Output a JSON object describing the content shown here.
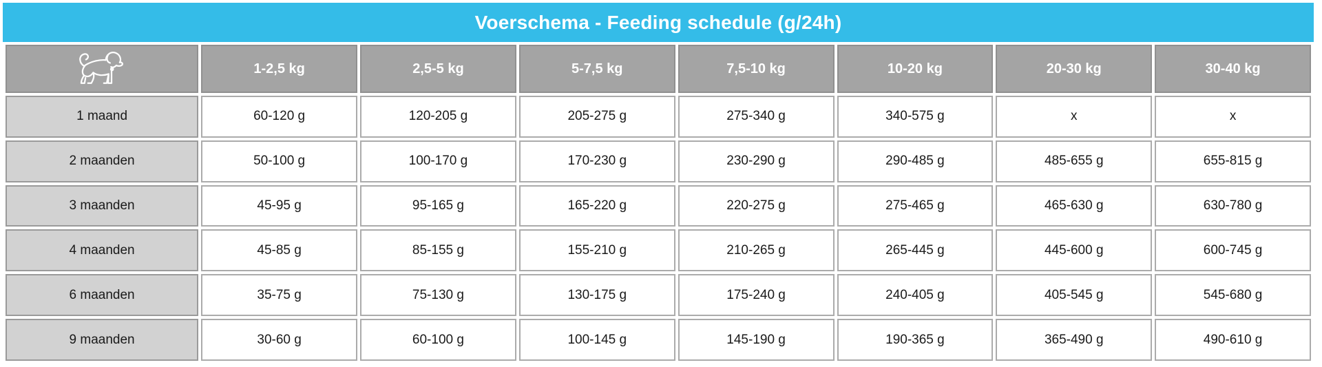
{
  "title": "Voerschema - Feeding schedule (g/24h)",
  "colors": {
    "title_bar_blue": "#34bce8",
    "header_gray": "#a4a4a4",
    "label_gray": "#d2d2d2",
    "cell_border": "#ababab",
    "text_dark": "#1a1a1a",
    "header_text": "#ffffff"
  },
  "table": {
    "corner_icon": "dog-icon",
    "columns": [
      "1-2,5 kg",
      "2,5-5 kg",
      "5-7,5 kg",
      "7,5-10 kg",
      "10-20 kg",
      "20-30 kg",
      "30-40 kg"
    ],
    "rows": [
      {
        "label": "1 maand",
        "values": [
          "60-120 g",
          "120-205 g",
          "205-275 g",
          "275-340 g",
          "340-575 g",
          "x",
          "x"
        ]
      },
      {
        "label": "2 maanden",
        "values": [
          "50-100 g",
          "100-170 g",
          "170-230 g",
          "230-290 g",
          "290-485 g",
          "485-655 g",
          "655-815 g"
        ]
      },
      {
        "label": "3 maanden",
        "values": [
          "45-95 g",
          "95-165 g",
          "165-220 g",
          "220-275 g",
          "275-465 g",
          "465-630 g",
          "630-780 g"
        ]
      },
      {
        "label": "4 maanden",
        "values": [
          "45-85 g",
          "85-155 g",
          "155-210 g",
          "210-265 g",
          "265-445 g",
          "445-600 g",
          "600-745 g"
        ]
      },
      {
        "label": "6 maanden",
        "values": [
          "35-75 g",
          "75-130 g",
          "130-175 g",
          "175-240 g",
          "240-405 g",
          "405-545 g",
          "545-680 g"
        ]
      },
      {
        "label": "9 maanden",
        "values": [
          "30-60 g",
          "60-100 g",
          "100-145 g",
          "145-190 g",
          "190-365 g",
          "365-490 g",
          "490-610 g"
        ]
      }
    ]
  }
}
